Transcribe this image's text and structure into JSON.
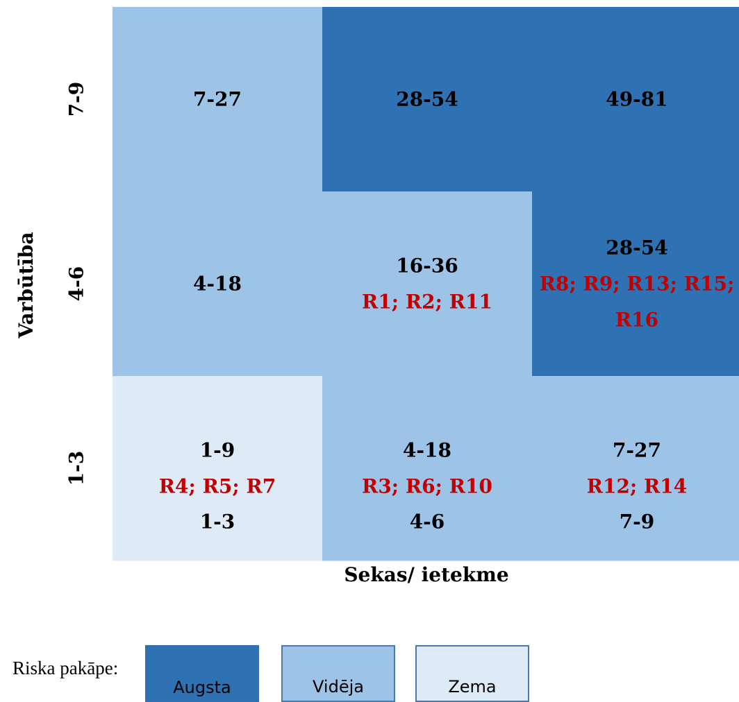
{
  "colors": {
    "high": "#2e72b3",
    "medium": "#9dc3e6",
    "low": "#deeaf6",
    "range_text": "#000000",
    "risk_text": "#c00000"
  },
  "chart_data": {
    "type": "heatmap",
    "xlabel": "Sekas/ ietekme",
    "ylabel": "Varbūtība",
    "x_categories": [
      "1-3",
      "4-6",
      "7-9"
    ],
    "y_categories": [
      "1-3",
      "4-6",
      "7-9"
    ],
    "cells": [
      {
        "row": "7-9",
        "col": "1-3",
        "level": "medium",
        "range": "7-27",
        "risks": []
      },
      {
        "row": "7-9",
        "col": "4-6",
        "level": "high",
        "range": "28-54",
        "risks": []
      },
      {
        "row": "7-9",
        "col": "7-9",
        "level": "high",
        "range": "49-81",
        "risks": []
      },
      {
        "row": "4-6",
        "col": "1-3",
        "level": "medium",
        "range": "4-18",
        "risks": []
      },
      {
        "row": "4-6",
        "col": "4-6",
        "level": "medium",
        "range": "16-36",
        "risks": [
          "R1; R2; R11"
        ]
      },
      {
        "row": "4-6",
        "col": "7-9",
        "level": "high",
        "range": "28-54",
        "risks": [
          "R8; R9; R13; R15;",
          "R16"
        ]
      },
      {
        "row": "1-3",
        "col": "1-3",
        "level": "low",
        "range": "1-9",
        "risks": [
          "R4; R5; R7"
        ]
      },
      {
        "row": "1-3",
        "col": "4-6",
        "level": "medium",
        "range": "4-18",
        "risks": [
          "R3; R6; R10"
        ]
      },
      {
        "row": "1-3",
        "col": "7-9",
        "level": "medium",
        "range": "7-27",
        "risks": [
          "R12; R14"
        ]
      }
    ]
  },
  "legend": {
    "title": "Riska pakāpe:",
    "items": [
      {
        "level": "high",
        "label": "Augsta"
      },
      {
        "level": "medium",
        "label": "Vidēja"
      },
      {
        "level": "low",
        "label": "Zema"
      }
    ]
  }
}
